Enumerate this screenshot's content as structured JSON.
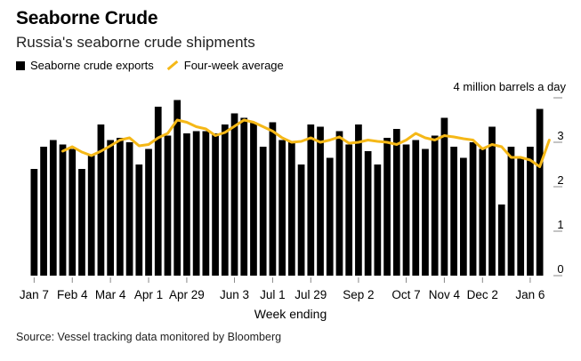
{
  "title": "Seaborne Crude",
  "subtitle": "Russia's seaborne crude shipments",
  "legend": {
    "bars_label": "Seaborne crude exports",
    "line_label": "Four-week average"
  },
  "source": "Source: Vessel tracking data monitored by Bloomberg",
  "colors": {
    "bars": "#000000",
    "line": "#f5b817",
    "axis": "#888888"
  },
  "chart_data": {
    "type": "bar",
    "title": "Seaborne Crude",
    "xlabel": "Week ending",
    "ylabel": "4 million barrels a day",
    "ylim": [
      0,
      4
    ],
    "y_ticks": [
      "0",
      "1",
      "2",
      "3"
    ],
    "y_unit_label": "4 million barrels a day",
    "x_tick_labels": [
      "Jan 7",
      "Feb 4",
      "Mar 4",
      "Apr 1",
      "Apr 29",
      "Jun 3",
      "Jul 1",
      "Jul 29",
      "Sep 2",
      "Oct 7",
      "Nov 4",
      "Dec 2",
      "Jan 6"
    ],
    "x_tick_positions": [
      0,
      4,
      8,
      12,
      16,
      21,
      25,
      29,
      34,
      39,
      43,
      47,
      52
    ],
    "series": [
      {
        "name": "Seaborne crude exports",
        "type": "bar",
        "values": [
          2.4,
          2.9,
          3.05,
          2.95,
          2.85,
          2.4,
          2.7,
          3.4,
          3.05,
          3.1,
          3.0,
          2.5,
          2.85,
          3.8,
          3.15,
          3.95,
          3.2,
          3.25,
          3.25,
          3.2,
          3.4,
          3.65,
          3.55,
          3.45,
          2.9,
          3.45,
          3.05,
          3.0,
          2.5,
          3.4,
          3.35,
          2.65,
          3.25,
          2.95,
          3.4,
          2.8,
          2.5,
          3.1,
          3.3,
          2.95,
          3.05,
          2.85,
          3.15,
          3.55,
          2.9,
          2.65,
          3.0,
          2.85,
          3.35,
          1.6,
          2.9,
          2.65,
          2.9,
          3.75
        ]
      },
      {
        "name": "Four-week average",
        "type": "line",
        "start_index": 3,
        "values": [
          2.8,
          2.9,
          2.78,
          2.7,
          2.8,
          2.92,
          3.05,
          3.1,
          2.92,
          2.95,
          3.1,
          3.2,
          3.5,
          3.45,
          3.35,
          3.3,
          3.15,
          3.22,
          3.36,
          3.5,
          3.45,
          3.35,
          3.25,
          3.1,
          3.0,
          3.02,
          3.1,
          3.0,
          3.05,
          3.12,
          2.98,
          3.0,
          3.05,
          3.02,
          3.0,
          2.95,
          3.05,
          3.2,
          3.1,
          3.05,
          3.15,
          3.12,
          3.08,
          3.05,
          2.85,
          2.95,
          2.9,
          2.66,
          2.66,
          2.6,
          2.45,
          3.05
        ]
      }
    ]
  }
}
